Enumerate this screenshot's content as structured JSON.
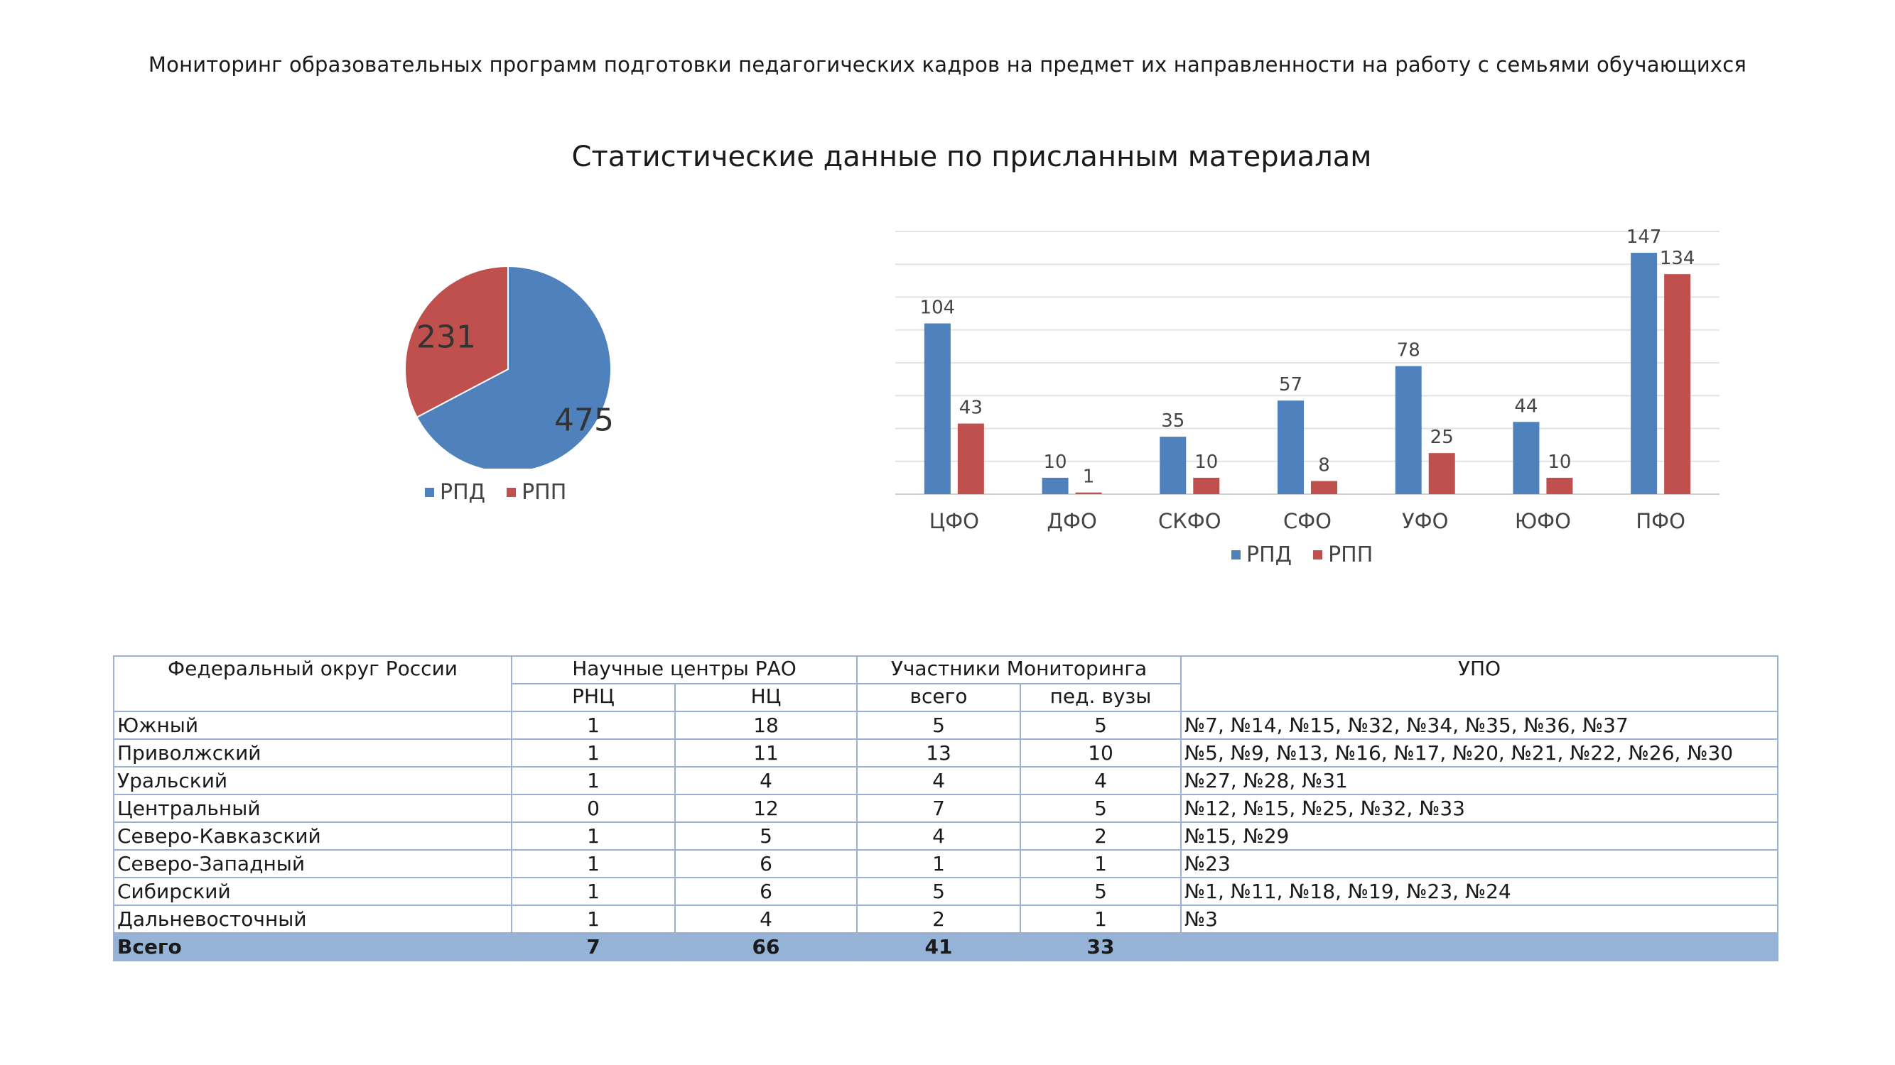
{
  "header": "Мониторинг образовательных программ подготовки педагогических кадров на предмет их направленности на работу с семьями обучающихся",
  "title": "Статистические данные по присланным материалам",
  "colors": {
    "rpd": "#4f81bd",
    "rpp": "#c0504d"
  },
  "chart_data": [
    {
      "type": "pie",
      "categories": [
        "РПД",
        "РПП"
      ],
      "values": [
        475,
        231
      ],
      "legend": [
        "РПД",
        "РПП"
      ],
      "legend_position": "bottom",
      "data_labels": [
        "475",
        "231"
      ]
    },
    {
      "type": "bar",
      "categories": [
        "ЦФО",
        "ДФО",
        "СКФО",
        "СФО",
        "УФО",
        "ЮФО",
        "ПФО"
      ],
      "series": [
        {
          "name": "РПД",
          "values": [
            104,
            10,
            35,
            57,
            78,
            44,
            147
          ]
        },
        {
          "name": "РПП",
          "values": [
            43,
            1,
            10,
            8,
            25,
            10,
            134
          ]
        }
      ],
      "ylim": [
        0,
        160
      ],
      "grid": true,
      "legend_position": "bottom"
    }
  ],
  "table": {
    "headers": {
      "district": "Федеральный округ России",
      "centers": "Научные центры  РАО",
      "participants": "Участники Мониторинга",
      "upo": "УПО",
      "rnc": "РНЦ",
      "nc": "НЦ",
      "total": "всего",
      "ped": "пед. вузы"
    },
    "rows": [
      {
        "district": "Южный",
        "rnc": "1",
        "nc": "18",
        "total": "5",
        "ped": "5",
        "upo": "№7, №14, №15, №32, №34, №35, №36, №37"
      },
      {
        "district": "Приволжский",
        "rnc": "1",
        "nc": "11",
        "total": "13",
        "ped": "10",
        "upo": "№5, №9, №13, №16, №17, №20, №21, №22, №26, №30"
      },
      {
        "district": "Уральский",
        "rnc": "1",
        "nc": "4",
        "total": "4",
        "ped": "4",
        "upo": "№27, №28, №31"
      },
      {
        "district": "Центральный",
        "rnc": "0",
        "nc": "12",
        "total": "7",
        "ped": "5",
        "upo": "№12, №15, №25, №32, №33"
      },
      {
        "district": "Северо-Кавказский",
        "rnc": "1",
        "nc": "5",
        "total": "4",
        "ped": "2",
        "upo": "№15, №29"
      },
      {
        "district": "Северо-Западный",
        "rnc": "1",
        "nc": "6",
        "total": "1",
        "ped": "1",
        "upo": "№23"
      },
      {
        "district": "Сибирский",
        "rnc": "1",
        "nc": "6",
        "total": "5",
        "ped": "5",
        "upo": "№1, №11, №18, №19, №23, №24"
      },
      {
        "district": "Дальневосточный",
        "rnc": "1",
        "nc": "4",
        "total": "2",
        "ped": "1",
        "upo": "№3"
      }
    ],
    "totals": {
      "district": "Всего",
      "rnc": "7",
      "nc": "66",
      "total": "41",
      "ped": "33",
      "upo": ""
    }
  }
}
